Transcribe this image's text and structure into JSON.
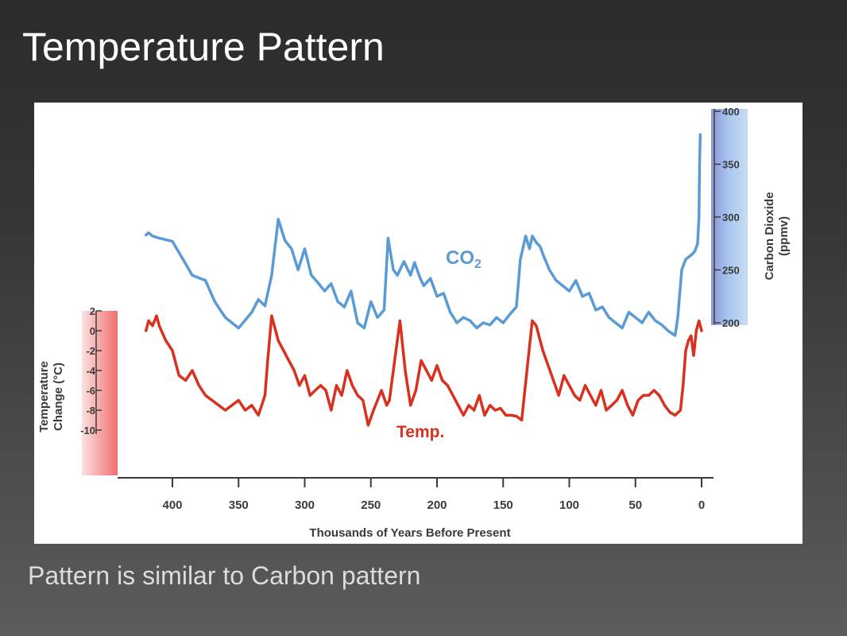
{
  "slide": {
    "title": "Temperature Pattern",
    "caption": "Pattern is similar to Carbon pattern"
  },
  "colors": {
    "background": "#333333",
    "co2_line": "#5b9bd5",
    "temp_line": "#d9311f",
    "left_band": "#f07c7c",
    "right_band": "#a9c8f0"
  },
  "chart_data": {
    "type": "line",
    "xlabel": "Thousands of Years Before Present",
    "x_ticks": [
      400,
      350,
      300,
      250,
      200,
      150,
      100,
      50,
      0
    ],
    "xlim": [
      430,
      0
    ],
    "x_reversed": true,
    "y_left": {
      "label_line1": "Temperature",
      "label_line2": "Change (°C)",
      "ticks": [
        2,
        0,
        -2,
        -4,
        -6,
        -8,
        -10
      ],
      "lim": [
        -10,
        2
      ]
    },
    "y_right": {
      "label_line1": "Carbon Dioxide",
      "label_line2": "(ppmv)",
      "ticks": [
        400,
        350,
        300,
        250,
        200
      ],
      "lim": [
        200,
        400
      ]
    },
    "series": [
      {
        "name": "CO2",
        "label_main": "CO",
        "label_sub": "2",
        "axis": "right",
        "x": [
          420,
          418,
          415,
          410,
          400,
          392,
          385,
          375,
          368,
          360,
          355,
          350,
          340,
          335,
          330,
          325,
          320,
          315,
          310,
          305,
          300,
          295,
          290,
          285,
          280,
          275,
          270,
          265,
          260,
          255,
          250,
          245,
          240,
          237,
          233,
          230,
          225,
          220,
          217,
          213,
          210,
          205,
          200,
          195,
          190,
          185,
          180,
          175,
          170,
          165,
          160,
          155,
          150,
          145,
          140,
          137,
          133,
          130,
          128,
          125,
          122,
          120,
          115,
          110,
          105,
          100,
          95,
          90,
          85,
          80,
          75,
          70,
          65,
          60,
          55,
          50,
          45,
          40,
          35,
          30,
          25,
          20,
          18,
          15,
          12,
          10,
          7,
          5,
          3,
          2,
          1.5,
          1
        ],
        "values": [
          283,
          285,
          282,
          280,
          277,
          260,
          245,
          240,
          220,
          205,
          200,
          195,
          210,
          222,
          216,
          245,
          298,
          278,
          270,
          250,
          270,
          245,
          238,
          230,
          237,
          220,
          215,
          230,
          200,
          195,
          220,
          205,
          212,
          280,
          250,
          245,
          258,
          245,
          257,
          243,
          235,
          242,
          225,
          228,
          210,
          200,
          205,
          202,
          195,
          200,
          198,
          205,
          200,
          208,
          215,
          260,
          282,
          270,
          282,
          276,
          272,
          265,
          250,
          240,
          235,
          230,
          240,
          225,
          228,
          212,
          215,
          205,
          200,
          195,
          210,
          205,
          200,
          210,
          202,
          198,
          192,
          188,
          205,
          250,
          260,
          262,
          265,
          268,
          275,
          300,
          350,
          378
        ]
      },
      {
        "name": "Temp.",
        "axis": "left",
        "x": [
          420,
          418,
          415,
          412,
          410,
          405,
          400,
          395,
          390,
          385,
          380,
          375,
          370,
          365,
          360,
          355,
          350,
          345,
          340,
          335,
          330,
          328,
          325,
          322,
          320,
          316,
          312,
          308,
          304,
          300,
          296,
          292,
          288,
          284,
          280,
          276,
          272,
          268,
          264,
          260,
          256,
          252,
          248,
          245,
          242,
          238,
          236,
          232,
          228,
          224,
          220,
          216,
          212,
          208,
          204,
          200,
          196,
          192,
          188,
          184,
          180,
          176,
          172,
          168,
          164,
          160,
          156,
          152,
          148,
          144,
          140,
          136,
          132,
          128,
          125,
          120,
          116,
          112,
          108,
          104,
          100,
          96,
          92,
          88,
          84,
          80,
          76,
          72,
          68,
          64,
          60,
          56,
          52,
          48,
          44,
          40,
          36,
          32,
          28,
          24,
          20,
          16,
          14,
          12,
          10,
          8,
          6,
          4,
          2,
          0
        ],
        "values": [
          0,
          1,
          0.5,
          1.5,
          0.5,
          -1,
          -2,
          -4.5,
          -5,
          -4,
          -5.5,
          -6.5,
          -7,
          -7.5,
          -8,
          -7.5,
          -7,
          -8,
          -7.5,
          -8.5,
          -6.5,
          -3,
          1.5,
          0,
          -1,
          -2,
          -3,
          -4,
          -5.5,
          -4.5,
          -6.5,
          -6,
          -5.5,
          -6,
          -8,
          -5.5,
          -6.5,
          -4,
          -5.5,
          -6.5,
          -7,
          -9.5,
          -8,
          -7,
          -6,
          -7.5,
          -7,
          -3,
          1,
          -4,
          -7.5,
          -6,
          -3,
          -4,
          -5,
          -3.5,
          -5,
          -5.5,
          -6.5,
          -7.5,
          -8.5,
          -7.5,
          -8,
          -6.5,
          -8.5,
          -7.5,
          -8,
          -7.8,
          -8.5,
          -8.5,
          -8.6,
          -9,
          -4,
          1,
          0.5,
          -2,
          -3.5,
          -5,
          -6.5,
          -4.5,
          -5.5,
          -6.5,
          -7,
          -5.5,
          -6.5,
          -7.5,
          -6,
          -8,
          -7.5,
          -7,
          -6,
          -7.5,
          -8.5,
          -7,
          -6.5,
          -6.5,
          -6,
          -6.5,
          -7.5,
          -8.2,
          -8.5,
          -8,
          -5.5,
          -2,
          -1,
          -0.5,
          -2.5,
          0,
          1,
          0
        ]
      }
    ]
  }
}
